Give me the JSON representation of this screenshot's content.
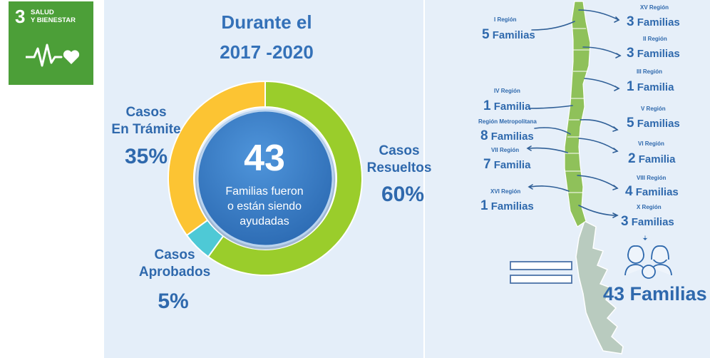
{
  "badge": {
    "number": "3",
    "title_line1": "SALUD",
    "title_line2": "Y BIENESTAR",
    "color": "#4c9f38",
    "icon": "heartbeat-icon"
  },
  "heading": {
    "line1": "Durante el",
    "line2": "2017 -2020"
  },
  "chart_data": {
    "type": "pie",
    "title": "",
    "center": {
      "value": "43",
      "text_lines": [
        "Familias fueron",
        "o están siendo",
        "ayudadas"
      ]
    },
    "slices": [
      {
        "label_lines": [
          "Casos",
          "Resueltos"
        ],
        "percent_label": "60%",
        "value": 60,
        "color": "#9acd2b"
      },
      {
        "label_lines": [
          "Casos",
          "Aprobados"
        ],
        "percent_label": "5%",
        "value": 5,
        "color": "#4ec9d6"
      },
      {
        "label_lines": [
          "Casos",
          "En Trámite"
        ],
        "percent_label": "35%",
        "value": 35,
        "color": "#fcc433"
      }
    ]
  },
  "regions": [
    {
      "name": "I Región",
      "count": "5",
      "unit": "Familias"
    },
    {
      "name": "XV Región",
      "count": "3",
      "unit": "Familias"
    },
    {
      "name": "II Región",
      "count": "3",
      "unit": "Familias"
    },
    {
      "name": "III Región",
      "count": "1",
      "unit": "Familia"
    },
    {
      "name": "IV Región",
      "count": "1",
      "unit": "Familia"
    },
    {
      "name": "V Región",
      "count": "5",
      "unit": "Familias"
    },
    {
      "name": "Región Metropolitana",
      "count": "8",
      "unit": "Familias"
    },
    {
      "name": "VI Región",
      "count": "2",
      "unit": "Familia"
    },
    {
      "name": "VII Región",
      "count": "7",
      "unit": "Familia"
    },
    {
      "name": "VIII Región",
      "count": "4",
      "unit": "Familias"
    },
    {
      "name": "XVI Región",
      "count": "1",
      "unit": "Familias"
    },
    {
      "name": "X Región",
      "count": "3",
      "unit": "Familias"
    }
  ],
  "total": "43 Familias",
  "colors": {
    "text_blue": "#2f69ad",
    "map_green": "#8fc15a",
    "map_grey": "#b7c8bd"
  }
}
